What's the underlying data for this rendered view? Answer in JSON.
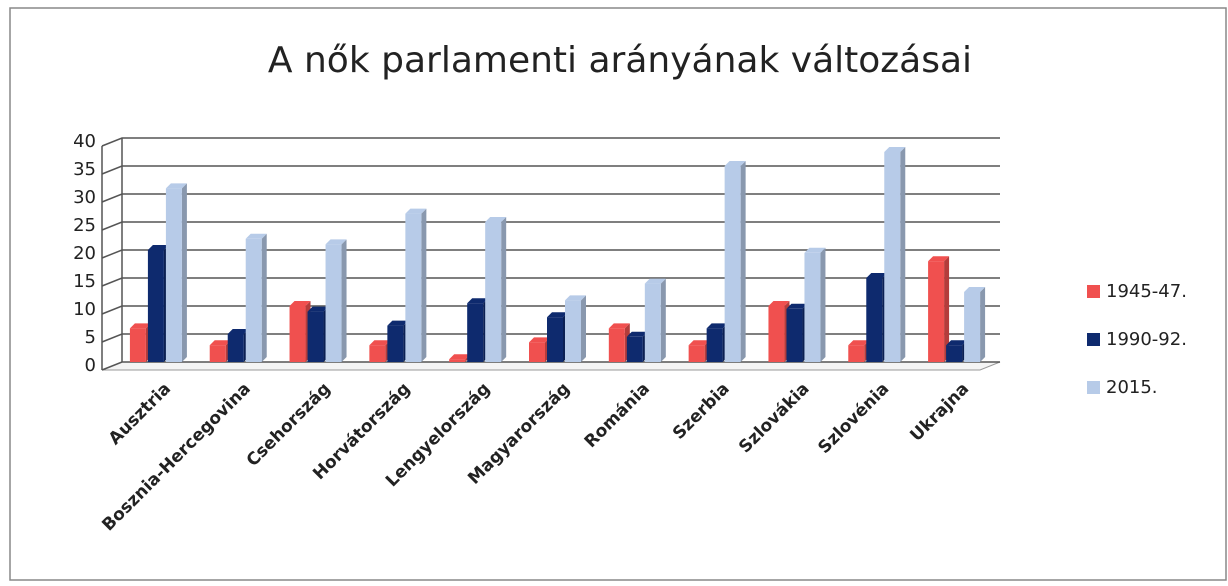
{
  "chart_data": {
    "type": "bar",
    "title": "A nők parlamenti arányának változásai",
    "categories": [
      "Ausztria",
      "Bosznia-Hercegovina",
      "Csehország",
      "Horvátország",
      "Lengyelország",
      "Magyarország",
      "Románia",
      "Szerbia",
      "Szlovákia",
      "Szlovénia",
      "Ukrajna"
    ],
    "series": [
      {
        "name": "1945-47.",
        "color": "#f0504f",
        "values": [
          6,
          3,
          10,
          3,
          0.5,
          3.5,
          6,
          3,
          10,
          3,
          18
        ]
      },
      {
        "name": "1990-92.",
        "color": "#0e2a6e",
        "values": [
          20,
          5,
          9,
          6.5,
          10.5,
          8,
          4.5,
          6,
          9.5,
          15,
          3
        ]
      },
      {
        "name": "2015.",
        "color": "#b7cbe8",
        "values": [
          31,
          22,
          21,
          26.5,
          25,
          11,
          14,
          35,
          19.5,
          37.5,
          12.5
        ]
      }
    ],
    "ylim": [
      0,
      40
    ],
    "yticks": [
      0,
      5,
      10,
      15,
      20,
      25,
      30,
      35,
      40
    ],
    "grid": true,
    "legend": "right"
  }
}
